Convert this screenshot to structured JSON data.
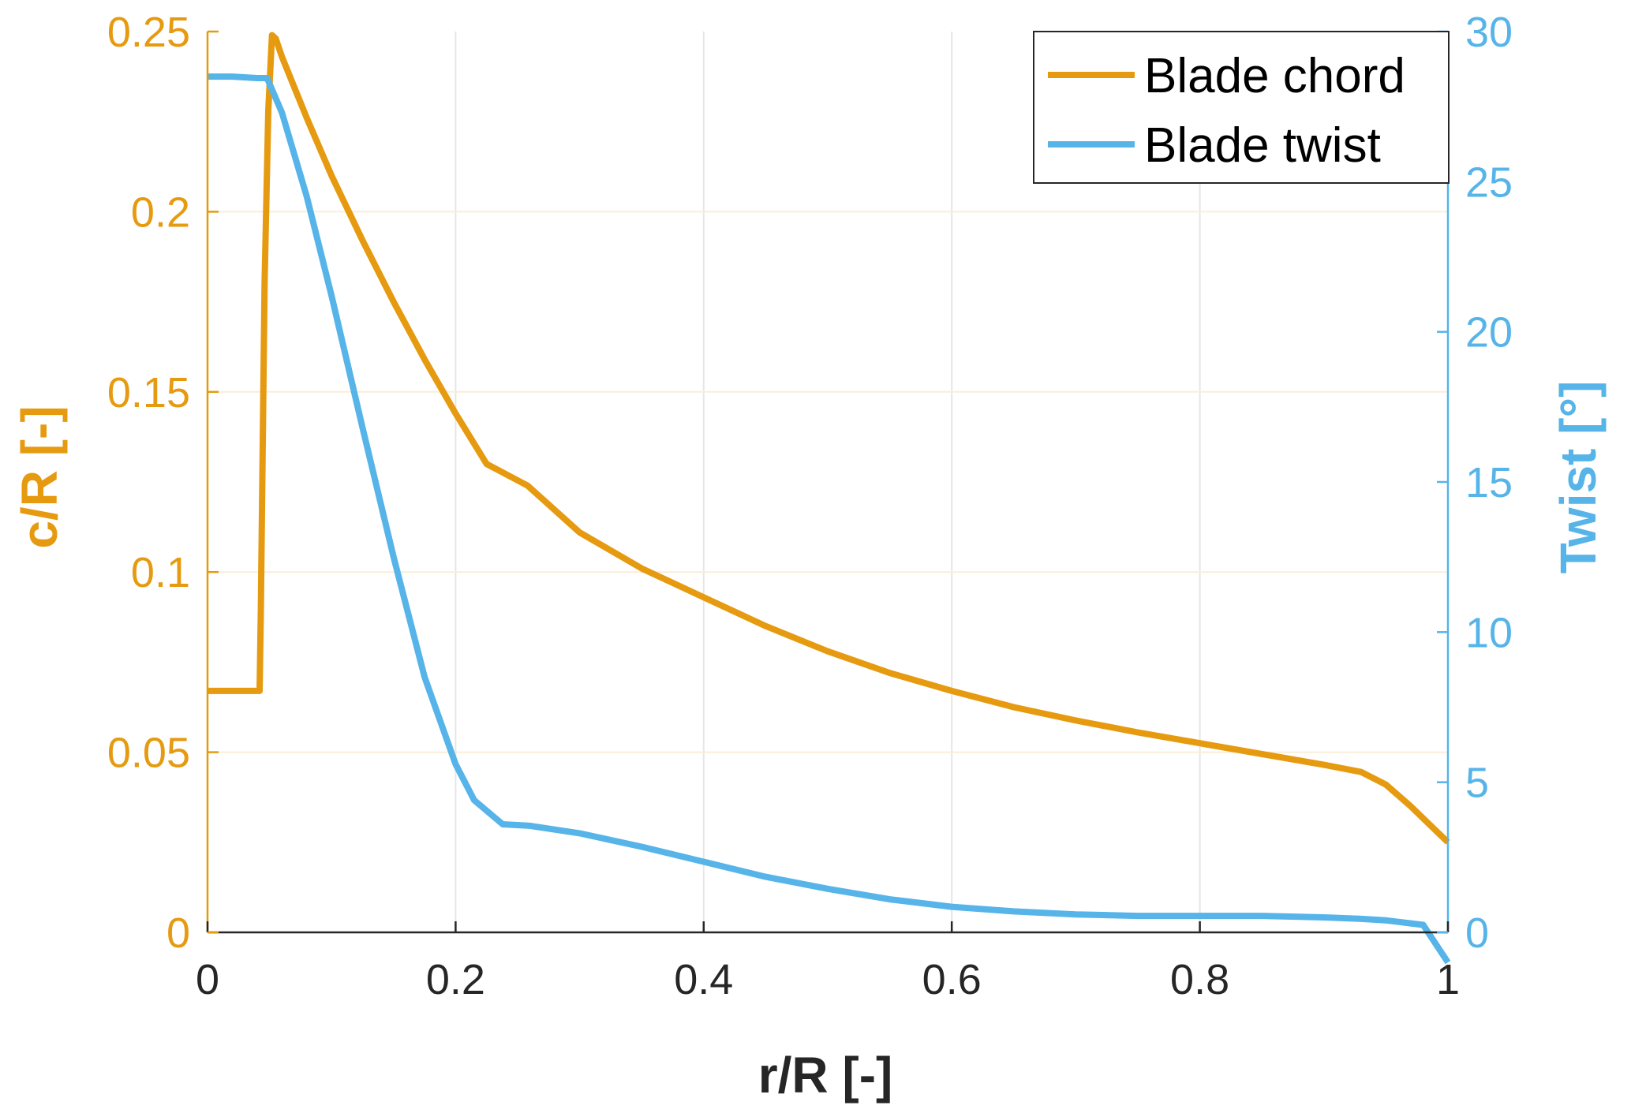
{
  "chart_data": {
    "type": "line",
    "xlabel": "r/R [-]",
    "ylabel_left": "c/R [-]",
    "ylabel_right": "Twist [°]",
    "xlim": [
      0,
      1
    ],
    "ylim_left": [
      0,
      0.25
    ],
    "ylim_right": [
      0,
      30
    ],
    "x_ticks": [
      "0",
      "0.2",
      "0.4",
      "0.6",
      "0.8",
      "1"
    ],
    "y_left_ticks": [
      "0",
      "0.05",
      "0.1",
      "0.15",
      "0.2",
      "0.25"
    ],
    "y_right_ticks": [
      "0",
      "5",
      "10",
      "15",
      "20",
      "25",
      "30"
    ],
    "grid": true,
    "legend_position": "top-right",
    "colors": {
      "chord": "#E69A0F",
      "twist": "#56B4E9",
      "axis_dark": "#262626"
    },
    "series": [
      {
        "name": "Blade chord",
        "axis": "left",
        "x": [
          0,
          0.01,
          0.02,
          0.03,
          0.042,
          0.043,
          0.046,
          0.049,
          0.052,
          0.055,
          0.06,
          0.08,
          0.1,
          0.125,
          0.15,
          0.175,
          0.2,
          0.225,
          0.258,
          0.3,
          0.35,
          0.4,
          0.45,
          0.5,
          0.55,
          0.6,
          0.65,
          0.7,
          0.75,
          0.8,
          0.85,
          0.9,
          0.93,
          0.95,
          0.97,
          0.985,
          1.0
        ],
        "values": [
          0.067,
          0.067,
          0.067,
          0.067,
          0.067,
          0.09,
          0.18,
          0.228,
          0.249,
          0.248,
          0.243,
          0.226,
          0.21,
          0.192,
          0.175,
          0.159,
          0.144,
          0.13,
          0.124,
          0.111,
          0.101,
          0.093,
          0.085,
          0.078,
          0.072,
          0.067,
          0.0625,
          0.0588,
          0.0555,
          0.0525,
          0.0495,
          0.0465,
          0.0445,
          0.041,
          0.035,
          0.03,
          0.025
        ]
      },
      {
        "name": "Blade twist",
        "axis": "right",
        "x": [
          0,
          0.02,
          0.04,
          0.048,
          0.06,
          0.08,
          0.1,
          0.125,
          0.15,
          0.175,
          0.2,
          0.215,
          0.238,
          0.26,
          0.3,
          0.35,
          0.4,
          0.45,
          0.5,
          0.55,
          0.6,
          0.65,
          0.7,
          0.75,
          0.8,
          0.85,
          0.9,
          0.93,
          0.95,
          0.98,
          1.0
        ],
        "values": [
          28.5,
          28.5,
          28.45,
          28.45,
          27.3,
          24.5,
          21.2,
          16.8,
          12.5,
          8.5,
          5.6,
          4.4,
          3.6,
          3.55,
          3.3,
          2.85,
          2.35,
          1.85,
          1.45,
          1.1,
          0.85,
          0.7,
          0.6,
          0.55,
          0.55,
          0.55,
          0.5,
          0.45,
          0.4,
          0.25,
          -1.0
        ]
      }
    ]
  }
}
